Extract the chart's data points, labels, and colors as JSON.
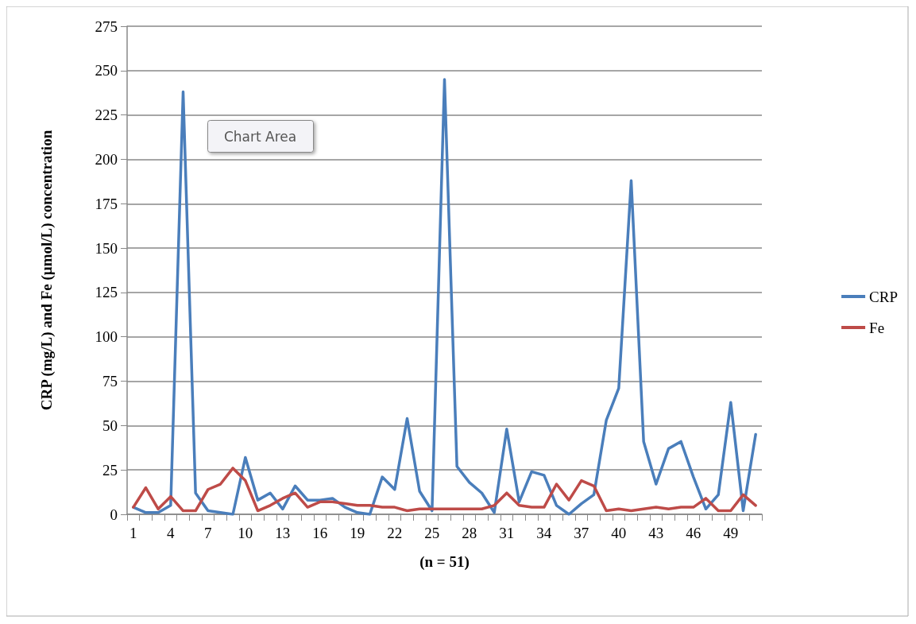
{
  "chart_data": {
    "type": "line",
    "xlabel": "(n = 51)",
    "ylabel": "CRP (mg/L) and Fe (µmol/L) concentration",
    "categories": [
      "1",
      null,
      null,
      "4",
      null,
      null,
      "7",
      null,
      null,
      "10",
      null,
      null,
      "13",
      null,
      null,
      "16",
      null,
      null,
      "19",
      null,
      null,
      "22",
      null,
      null,
      "25",
      null,
      null,
      "28",
      null,
      null,
      "31",
      null,
      null,
      "34",
      null,
      null,
      "37",
      null,
      null,
      "40",
      null,
      null,
      "43",
      null,
      null,
      "46",
      null,
      null,
      "49",
      null,
      null
    ],
    "series": [
      {
        "name": "CRP",
        "color": "#4a7ebb",
        "values": [
          4,
          1,
          1,
          5,
          238,
          12,
          2,
          1,
          0,
          32,
          8,
          12,
          3,
          16,
          8,
          8,
          9,
          4,
          1,
          0,
          21,
          14,
          54,
          13,
          2,
          245,
          27,
          18,
          12,
          1,
          48,
          7,
          24,
          22,
          5,
          0,
          6,
          11,
          53,
          71,
          188,
          41,
          17,
          37,
          41,
          21,
          3,
          11,
          63,
          2,
          45
        ]
      },
      {
        "name": "Fe",
        "color": "#be4b48",
        "values": [
          4,
          15,
          3,
          10,
          2,
          2,
          14,
          17,
          26,
          19,
          2,
          5,
          9,
          12,
          4,
          7,
          7,
          6,
          5,
          5,
          4,
          4,
          2,
          3,
          3,
          3,
          3,
          3,
          3,
          5,
          12,
          5,
          4,
          4,
          17,
          8,
          19,
          16,
          2,
          3,
          2,
          3,
          4,
          3,
          4,
          4,
          9,
          2,
          2,
          11,
          5
        ]
      }
    ],
    "ylim": [
      0,
      275
    ],
    "yticks": [
      0,
      25,
      50,
      75,
      100,
      125,
      150,
      175,
      200,
      225,
      250,
      275
    ],
    "grid": "y",
    "legend": "right",
    "marker": "none",
    "line_style": "solid",
    "annotations": [
      "Chart Area"
    ]
  }
}
